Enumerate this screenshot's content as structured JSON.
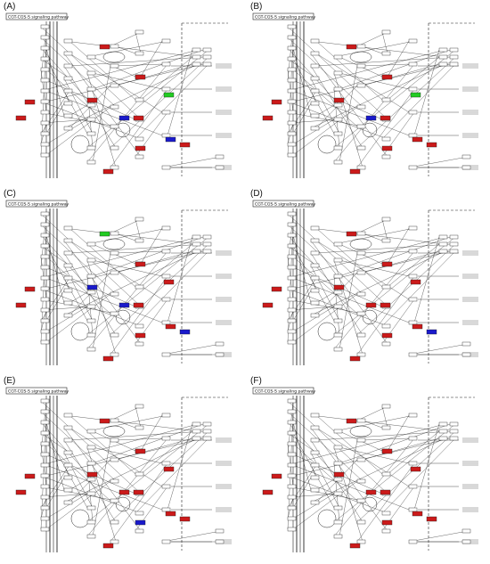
{
  "figure": {
    "panels": [
      {
        "label": "(A)",
        "pathway_title": "CGT-CGS-S signaling pathway",
        "highlights": [
          "red",
          "red",
          "red",
          "green",
          "blue",
          "red",
          "red",
          "red",
          "red",
          "blue",
          "red",
          "red"
        ]
      },
      {
        "label": "(B)",
        "pathway_title": "CGT-CGS-S signaling pathway",
        "highlights": [
          "red",
          "red",
          "red",
          "green",
          "blue",
          "red",
          "red",
          "red",
          "red",
          "red",
          "red",
          "red"
        ]
      },
      {
        "label": "(C)",
        "pathway_title": "CGT-CGS-S signaling pathway",
        "highlights": [
          "green",
          "blue",
          "red",
          "red",
          "blue",
          "red",
          "red",
          "red",
          "blue",
          "red",
          "red",
          "red"
        ]
      },
      {
        "label": "(D)",
        "pathway_title": "CGT-CGS-S signaling pathway",
        "highlights": [
          "red",
          "red",
          "red",
          "red",
          "red",
          "red",
          "red",
          "red",
          "blue",
          "red",
          "red",
          "red"
        ]
      },
      {
        "label": "(E)",
        "pathway_title": "CGT-CGS-S signaling pathway",
        "highlights": [
          "red",
          "red",
          "red",
          "red",
          "red",
          "red",
          "red",
          "blue",
          "red",
          "red",
          "red",
          "red"
        ]
      },
      {
        "label": "(F)",
        "pathway_title": "CGT-CGS-S signaling pathway",
        "highlights": [
          "red",
          "red",
          "red",
          "red",
          "red",
          "red",
          "red",
          "red",
          "red",
          "red",
          "red",
          "red"
        ]
      }
    ],
    "colors": {
      "red": "#cc1a1a",
      "green": "#22cc22",
      "blue": "#1a1acc",
      "line": "#222222",
      "node_fill": "#ffffff"
    }
  }
}
